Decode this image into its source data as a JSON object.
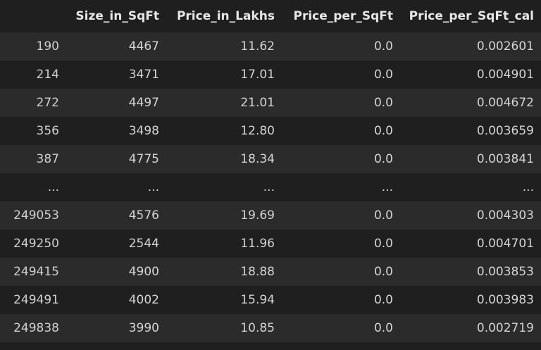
{
  "table": {
    "columns": [
      "",
      "Size_in_SqFt",
      "Price_in_Lakhs",
      "Price_per_SqFt",
      "Price_per_SqFt_cal"
    ],
    "rows": [
      [
        "190",
        "4467",
        "11.62",
        "0.0",
        "0.002601"
      ],
      [
        "214",
        "3471",
        "17.01",
        "0.0",
        "0.004901"
      ],
      [
        "272",
        "4497",
        "21.01",
        "0.0",
        "0.004672"
      ],
      [
        "356",
        "3498",
        "12.80",
        "0.0",
        "0.003659"
      ],
      [
        "387",
        "4775",
        "18.34",
        "0.0",
        "0.003841"
      ],
      [
        "...",
        "...",
        "...",
        "...",
        "..."
      ],
      [
        "249053",
        "4576",
        "19.69",
        "0.0",
        "0.004303"
      ],
      [
        "249250",
        "2544",
        "11.96",
        "0.0",
        "0.004701"
      ],
      [
        "249415",
        "4900",
        "18.88",
        "0.0",
        "0.003853"
      ],
      [
        "249491",
        "4002",
        "15.94",
        "0.0",
        "0.003983"
      ],
      [
        "249838",
        "3990",
        "10.85",
        "0.0",
        "0.002719"
      ]
    ]
  },
  "colors": {
    "background": "#1f1f1f",
    "row_stripe": "#2b2b2b",
    "text": "#d4d4d4",
    "header_text": "#e6e6e6"
  }
}
